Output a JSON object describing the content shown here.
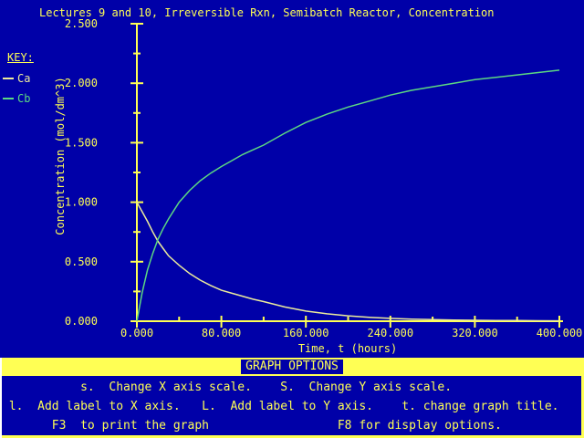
{
  "title": "Lectures 9 and 10, Irreversible Rxn, Semibatch Reactor, Concentration",
  "key": {
    "label": "KEY:",
    "entries": [
      {
        "name": "Ca",
        "color": "#ecec9c"
      },
      {
        "name": "Cb",
        "color": "#5cd882"
      }
    ]
  },
  "chart_data": {
    "type": "line",
    "title": "Lectures 9 and 10, Irreversible Rxn, Semibatch Reactor, Concentration",
    "xlabel": "Time, t (hours)",
    "ylabel": "Concentration (mol/dm^3)",
    "xlim": [
      0,
      400
    ],
    "ylim": [
      0,
      2.5
    ],
    "grid": false,
    "legend_position": "top-left",
    "axis_color": "#ffff54",
    "x_ticks": {
      "major": [
        0,
        80,
        160,
        240,
        320,
        400
      ],
      "minor": [
        40,
        120,
        200,
        280,
        360
      ],
      "labels": [
        "0.000",
        "80.000",
        "160.000",
        "240.000",
        "320.000",
        "400.000"
      ]
    },
    "y_ticks": {
      "major": [
        0,
        0.5,
        1.0,
        1.5,
        2.0,
        2.5
      ],
      "minor": [
        0.25,
        0.75,
        1.25,
        1.75,
        2.25
      ],
      "labels": [
        "0.000",
        "0.500",
        "1.000",
        "1.500",
        "2.000",
        "2.500"
      ]
    },
    "x": [
      0,
      5,
      10,
      15,
      20,
      25,
      30,
      35,
      40,
      50,
      60,
      70,
      80,
      90,
      100,
      110,
      120,
      140,
      160,
      180,
      200,
      220,
      240,
      260,
      280,
      300,
      320,
      340,
      360,
      380,
      400
    ],
    "series": [
      {
        "name": "Ca",
        "color": "#ecec9c",
        "values": [
          1.0,
          0.92,
          0.84,
          0.75,
          0.67,
          0.61,
          0.55,
          0.51,
          0.47,
          0.4,
          0.345,
          0.3,
          0.26,
          0.235,
          0.21,
          0.185,
          0.165,
          0.12,
          0.085,
          0.062,
          0.045,
          0.033,
          0.024,
          0.018,
          0.013,
          0.01,
          0.008,
          0.006,
          0.005,
          0.004,
          0.003
        ]
      },
      {
        "name": "Cb",
        "color": "#5cd882",
        "values": [
          0.0,
          0.24,
          0.43,
          0.57,
          0.69,
          0.78,
          0.86,
          0.93,
          1.0,
          1.1,
          1.18,
          1.245,
          1.3,
          1.35,
          1.4,
          1.44,
          1.48,
          1.58,
          1.67,
          1.74,
          1.8,
          1.85,
          1.9,
          1.94,
          1.97,
          2.0,
          2.03,
          2.05,
          2.07,
          2.09,
          2.11
        ]
      }
    ]
  },
  "options_panel": {
    "header": "GRAPH OPTIONS",
    "lines": [
      "           s.  Change X axis scale.    S.  Change Y axis scale.",
      " l.  Add label to X axis.   L.  Add label to Y axis.    t. change graph title.",
      "       F3  to print the graph                  F8 for display options."
    ]
  },
  "colors": {
    "background": "#0000a8",
    "foreground_yellow": "#ffff54",
    "panel_edge_white": "#ffffff",
    "ca_curve": "#ecec9c",
    "cb_curve": "#5cd882"
  }
}
